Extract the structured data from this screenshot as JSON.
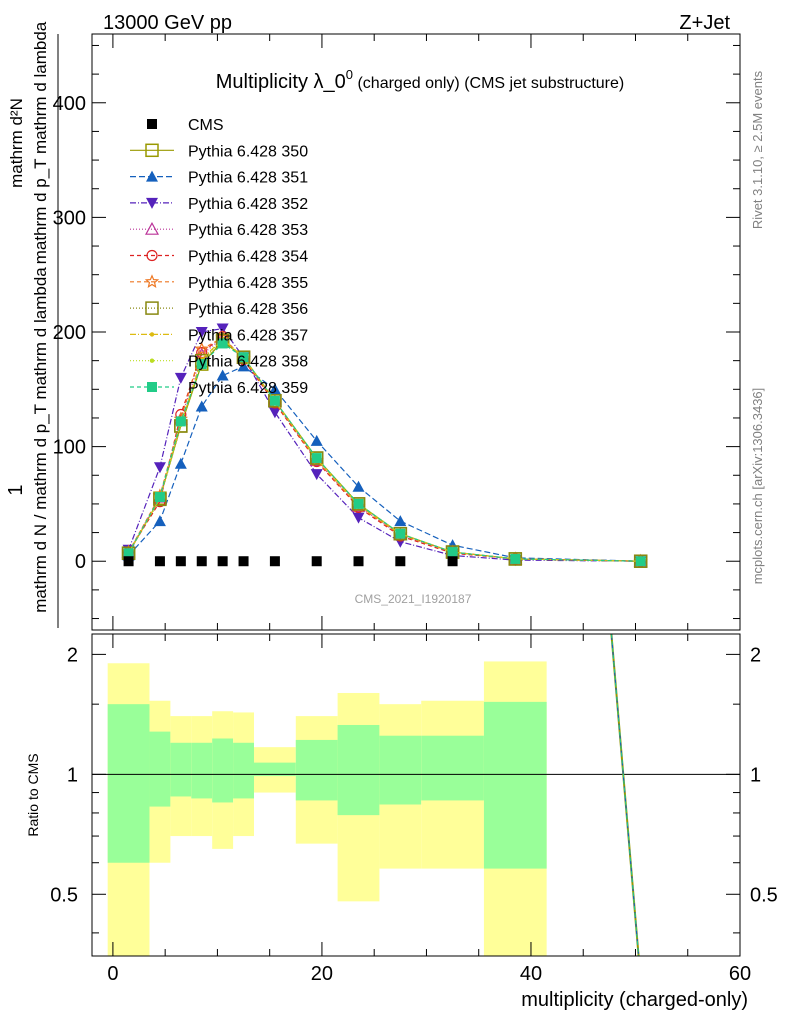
{
  "header": {
    "left": "13000 GeV pp",
    "right": "Z+Jet"
  },
  "side_labels": {
    "rivet": "Rivet 3.1.10, ≥ 2.5M events",
    "mcplots": "mcplots.cern.ch [arXiv:1306.3436]"
  },
  "watermark": "CMS_2021_I1920187",
  "chart_data": [
    {
      "panel": "main",
      "type": "line",
      "title": "Multiplicity λ_0⁰ (charged only) (CMS jet substructure)",
      "title_main": "Multiplicity λ_0",
      "title_sup": "0",
      "title_paren": " (charged only) (CMS jet substructure)",
      "ylabel_line1": "mathrm d²N",
      "ylabel_line2": "mathrm d p_T mathrm d lambda",
      "ylabel_num": "1",
      "ylabel_den": "mathrm d N / mathrm d p_T mathrm d lambda",
      "xlim": [
        -2,
        60
      ],
      "ylim": [
        -60,
        460
      ],
      "yticks": [
        0,
        100,
        200,
        300,
        400
      ],
      "ytick_labels": [
        "0",
        "100",
        "200",
        "300",
        "400"
      ],
      "legend_position": "top-left",
      "cms": {
        "name": "CMS",
        "color": "#000000",
        "x": [
          1.5,
          4.5,
          6.5,
          8.5,
          10.5,
          12.5,
          15.5,
          19.5,
          23.5,
          27.5,
          32.5
        ],
        "y": [
          0,
          0,
          0,
          0,
          0,
          0,
          0,
          0,
          0,
          0,
          0
        ]
      },
      "x": [
        1.5,
        4.5,
        6.5,
        8.5,
        10.5,
        12.5,
        15.5,
        19.5,
        23.5,
        27.5,
        32.5,
        38.5,
        50.5
      ],
      "series": [
        {
          "name": "Pythia 6.428 350",
          "color": "#999900",
          "dash": "",
          "marker": "square-open",
          "values": [
            7,
            55,
            118,
            172,
            192,
            178,
            140,
            90,
            50,
            24,
            8,
            2,
            0
          ]
        },
        {
          "name": "Pythia 6.428 351",
          "color": "#1560bd",
          "dash": "6,3",
          "marker": "triangle-up",
          "values": [
            5,
            35,
            85,
            135,
            162,
            170,
            150,
            105,
            65,
            35,
            14,
            3,
            0
          ]
        },
        {
          "name": "Pythia 6.428 352",
          "color": "#5522bb",
          "dash": "6,2,1,2",
          "marker": "triangle-down",
          "values": [
            10,
            82,
            160,
            200,
            203,
            178,
            130,
            76,
            38,
            17,
            5,
            1,
            0
          ]
        },
        {
          "name": "Pythia 6.428 353",
          "color": "#bb3399",
          "dash": "1,2",
          "marker": "triangle-open",
          "values": [
            8,
            56,
            124,
            180,
            195,
            177,
            139,
            88,
            48,
            23,
            8,
            2,
            0
          ]
        },
        {
          "name": "Pythia 6.428 354",
          "color": "#dd2222",
          "dash": "4,3",
          "marker": "circle-open",
          "values": [
            8,
            52,
            128,
            182,
            196,
            176,
            138,
            87,
            47,
            22,
            7,
            2,
            0
          ]
        },
        {
          "name": "Pythia 6.428 355",
          "color": "#ee7722",
          "dash": "4,3",
          "marker": "star-open",
          "values": [
            8,
            57,
            124,
            185,
            195,
            177,
            139,
            88,
            48,
            23,
            8,
            2,
            0
          ]
        },
        {
          "name": "Pythia 6.428 356",
          "color": "#888811",
          "dash": "1,2",
          "marker": "square-open",
          "values": [
            7,
            54,
            118,
            175,
            193,
            178,
            140,
            90,
            50,
            24,
            8,
            2,
            0
          ]
        },
        {
          "name": "Pythia 6.428 357",
          "color": "#ddbb11",
          "dash": "6,2,1,2",
          "marker": "dot",
          "values": [
            7,
            55,
            120,
            176,
            194,
            178,
            140,
            89,
            49,
            24,
            8,
            2,
            0
          ]
        },
        {
          "name": "Pythia 6.428 358",
          "color": "#bbdd22",
          "dash": "1,2",
          "marker": "dot",
          "values": [
            7,
            55,
            119,
            174,
            193,
            178,
            140,
            90,
            50,
            24,
            8,
            2,
            0
          ]
        },
        {
          "name": "Pythia 6.428 359",
          "color": "#22cc88",
          "dash": "4,3",
          "marker": "square-filled",
          "values": [
            7,
            56,
            122,
            172,
            190,
            178,
            140,
            90,
            50,
            24,
            8,
            2,
            0
          ]
        }
      ]
    },
    {
      "panel": "ratio",
      "type": "area",
      "ylabel": "Ratio to CMS",
      "xlabel": "multiplicity (charged-only)",
      "xlim": [
        -2,
        60
      ],
      "ylim": [
        0.35,
        2.25
      ],
      "xticks": [
        0,
        20,
        40,
        60
      ],
      "xtick_labels": [
        "0",
        "20",
        "40",
        "60"
      ],
      "yticks": [
        0.5,
        1,
        2
      ],
      "ytick_labels": [
        "0.5",
        "1",
        "2"
      ],
      "inner_color": "#99ff99",
      "outer_color": "#ffff99",
      "bins": [
        {
          "lo": -0.5,
          "hi": 3.5,
          "inner": [
            0.6,
            1.5
          ],
          "outer": [
            0.35,
            1.9
          ]
        },
        {
          "lo": 3.5,
          "hi": 5.5,
          "inner": [
            0.83,
            1.28
          ],
          "outer": [
            0.6,
            1.53
          ]
        },
        {
          "lo": 5.5,
          "hi": 7.5,
          "inner": [
            0.88,
            1.2
          ],
          "outer": [
            0.7,
            1.4
          ]
        },
        {
          "lo": 7.5,
          "hi": 9.5,
          "inner": [
            0.87,
            1.2
          ],
          "outer": [
            0.7,
            1.4
          ]
        },
        {
          "lo": 9.5,
          "hi": 11.5,
          "inner": [
            0.85,
            1.23
          ],
          "outer": [
            0.65,
            1.44
          ]
        },
        {
          "lo": 11.5,
          "hi": 13.5,
          "inner": [
            0.87,
            1.2
          ],
          "outer": [
            0.7,
            1.43
          ]
        },
        {
          "lo": 13.5,
          "hi": 17.5,
          "inner": [
            0.99,
            1.07
          ],
          "outer": [
            0.9,
            1.17
          ]
        },
        {
          "lo": 17.5,
          "hi": 21.5,
          "inner": [
            0.86,
            1.22
          ],
          "outer": [
            0.67,
            1.4
          ]
        },
        {
          "lo": 21.5,
          "hi": 25.5,
          "inner": [
            0.79,
            1.33
          ],
          "outer": [
            0.48,
            1.6
          ]
        },
        {
          "lo": 25.5,
          "hi": 29.5,
          "inner": [
            0.84,
            1.25
          ],
          "outer": [
            0.58,
            1.5
          ]
        },
        {
          "lo": 29.5,
          "hi": 35.5,
          "inner": [
            0.86,
            1.25
          ],
          "outer": [
            0.58,
            1.53
          ]
        },
        {
          "lo": 35.5,
          "hi": 41.5,
          "inner": [
            0.58,
            1.52
          ],
          "outer": [
            0.35,
            1.92
          ]
        }
      ],
      "curve": {
        "x": [
          47.7,
          50.3
        ],
        "y": [
          2.25,
          0.35
        ]
      }
    }
  ]
}
